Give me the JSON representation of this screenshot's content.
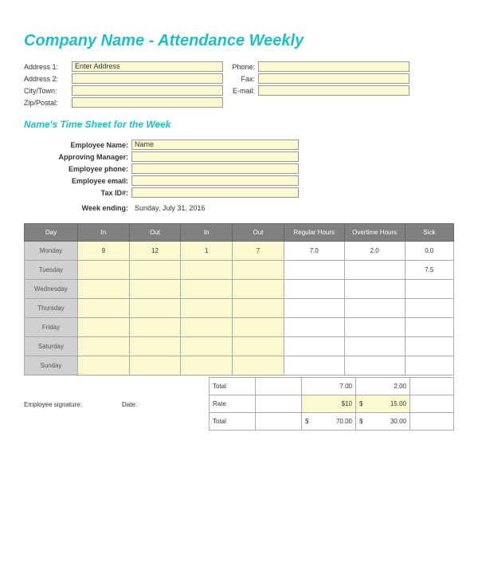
{
  "title": "Company Name - Attendance Weekly",
  "title_color": "#1bbfc4",
  "subtitle": "Name's Time Sheet for the Week",
  "subtitle_color": "#1bbfc4",
  "field_bg": "#fbf9cf",
  "header_bg": "#808080",
  "day_col_bg": "#d0d0d0",
  "addressBlock": {
    "left": [
      {
        "label": "Address 1:",
        "value": "Enter Address"
      },
      {
        "label": "Address 2:",
        "value": ""
      },
      {
        "label": "City/Town:",
        "value": ""
      },
      {
        "label": "Zip/Postal:",
        "value": ""
      }
    ],
    "right": [
      {
        "label": "Phone:",
        "value": ""
      },
      {
        "label": "Fax:",
        "value": ""
      },
      {
        "label": "E-mail:",
        "value": ""
      }
    ]
  },
  "employee": {
    "rows": [
      {
        "label": "Employee Name:",
        "value": "Name"
      },
      {
        "label": "Approving Manager:",
        "value": ""
      },
      {
        "label": "Employee phone:",
        "value": ""
      },
      {
        "label": "Employee email:",
        "value": ""
      },
      {
        "label": "Tax ID#:",
        "value": ""
      }
    ]
  },
  "weekEnding": {
    "label": "Week ending:",
    "value": "Sunday, July 31, 2016"
  },
  "table": {
    "headers": [
      "Day",
      "In",
      "Out",
      "In",
      "Out",
      "Regular Hours",
      "Overtime Hours",
      "Sick"
    ],
    "colWidths": [
      "60px",
      "58px",
      "58px",
      "58px",
      "58px",
      "68px",
      "68px",
      "55px"
    ],
    "rows": [
      {
        "day": "Monday",
        "in1": "9",
        "out1": "12",
        "in2": "1",
        "out2": "7",
        "reg": "7.0",
        "ot": "2.0",
        "sick": "0.0"
      },
      {
        "day": "Tuesday",
        "in1": "",
        "out1": "",
        "in2": "",
        "out2": "",
        "reg": "",
        "ot": "",
        "sick": "7.5"
      },
      {
        "day": "Wednesday",
        "in1": "",
        "out1": "",
        "in2": "",
        "out2": "",
        "reg": "",
        "ot": "",
        "sick": ""
      },
      {
        "day": "Thursday",
        "in1": "",
        "out1": "",
        "in2": "",
        "out2": "",
        "reg": "",
        "ot": "",
        "sick": ""
      },
      {
        "day": "Friday",
        "in1": "",
        "out1": "",
        "in2": "",
        "out2": "",
        "reg": "",
        "ot": "",
        "sick": ""
      },
      {
        "day": "Saturday",
        "in1": "",
        "out1": "",
        "in2": "",
        "out2": "",
        "reg": "",
        "ot": "",
        "sick": ""
      },
      {
        "day": "Sunday",
        "in1": "",
        "out1": "",
        "in2": "",
        "out2": "",
        "reg": "",
        "ot": "",
        "sick": ""
      }
    ]
  },
  "totals": {
    "rows": [
      {
        "label": "Total",
        "reg": "7.00",
        "ot": "2.00",
        "regPrefix": "",
        "otPrefix": "",
        "highlight": false
      },
      {
        "label": "Rate",
        "reg": "$10",
        "ot": "15.00",
        "regPrefix": "",
        "otPrefix": "$",
        "highlight": true
      },
      {
        "label": "Total",
        "reg": "70.00",
        "ot": "30.00",
        "regPrefix": "$",
        "otPrefix": "$",
        "highlight": false
      }
    ]
  },
  "signature": {
    "sigLabel": "Employee signature:",
    "dateLabel": "Date:"
  }
}
